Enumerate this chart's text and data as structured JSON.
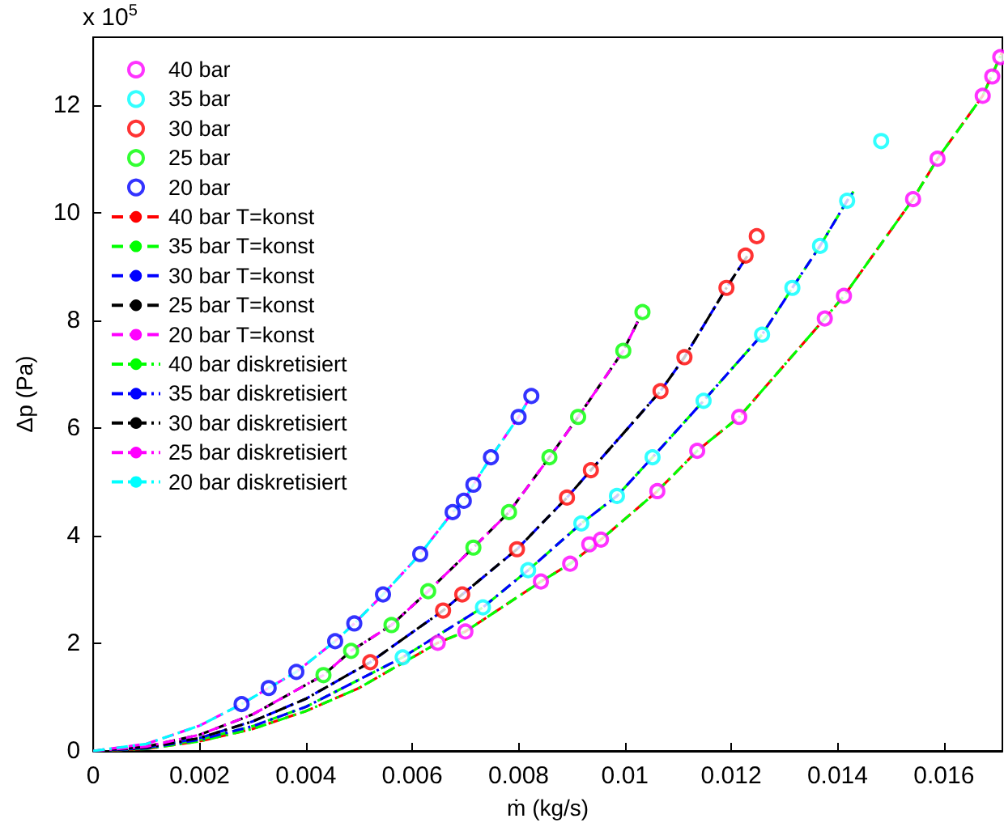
{
  "chart_data": {
    "type": "line",
    "xlabel": "ṁ (kg/s)",
    "ylabel": "Δp (Pa)",
    "annotations": [
      "x 10$^{5}$"
    ],
    "xlim": [
      0,
      0.0171
    ],
    "xticks": [
      0,
      0.002,
      0.004,
      0.006,
      0.008,
      0.01,
      0.012,
      0.014,
      0.016
    ],
    "ylim": [
      0,
      13.27
    ],
    "yticks": [
      0,
      2,
      4,
      6,
      8,
      10,
      12
    ],
    "grid": false,
    "legend": "top left",
    "series": [
      {
        "name": "40 bar",
        "type": "scatter",
        "marker": "circle",
        "color": "#ff00ff",
        "x": [
          0.00648,
          0.007,
          0.00842,
          0.00897,
          0.00933,
          0.00955,
          0.01061,
          0.01136,
          0.01215,
          0.01376,
          0.01412,
          0.01542,
          0.01588,
          0.01673,
          0.01691,
          0.01706
        ],
        "values": [
          2.01,
          2.22,
          3.15,
          3.48,
          3.84,
          3.93,
          4.83,
          5.58,
          6.21,
          8.04,
          8.46,
          10.26,
          11.01,
          12.18,
          12.54,
          12.9
        ]
      },
      {
        "name": "35 bar",
        "type": "scatter",
        "marker": "circle",
        "color": "#00ffff",
        "x": [
          0.00582,
          0.00733,
          0.00818,
          0.00918,
          0.00985,
          0.01052,
          0.01148,
          0.01258,
          0.01315,
          0.01367,
          0.01418,
          0.01482
        ],
        "values": [
          1.74,
          2.67,
          3.36,
          4.23,
          4.74,
          5.46,
          6.51,
          7.74,
          8.61,
          9.39,
          10.23,
          11.34
        ]
      },
      {
        "name": "30 bar",
        "type": "scatter",
        "marker": "circle",
        "color": "#ff0000",
        "x": [
          0.00521,
          0.00658,
          0.00694,
          0.00797,
          0.00891,
          0.00936,
          0.01067,
          0.01112,
          0.01191,
          0.01227,
          0.01248
        ],
        "values": [
          1.65,
          2.61,
          2.91,
          3.75,
          4.71,
          5.22,
          6.69,
          7.32,
          8.61,
          9.21,
          9.57
        ]
      },
      {
        "name": "25 bar",
        "type": "scatter",
        "marker": "circle",
        "color": "#00ff00",
        "x": [
          0.00433,
          0.00485,
          0.00561,
          0.0063,
          0.00715,
          0.00782,
          0.00858,
          0.00912,
          0.00997,
          0.01033
        ],
        "values": [
          1.41,
          1.86,
          2.34,
          2.97,
          3.78,
          4.44,
          5.46,
          6.21,
          7.44,
          8.16
        ]
      },
      {
        "name": "20 bar",
        "type": "scatter",
        "marker": "circle",
        "color": "#0000ff",
        "x": [
          0.00279,
          0.0033,
          0.00382,
          0.00455,
          0.00491,
          0.00545,
          0.00615,
          0.00676,
          0.00697,
          0.00715,
          0.00748,
          0.008,
          0.00824
        ],
        "values": [
          0.87,
          1.17,
          1.47,
          2.04,
          2.37,
          2.91,
          3.66,
          4.44,
          4.65,
          4.95,
          5.46,
          6.21,
          6.6
        ]
      },
      {
        "name": "40 bar T=konst",
        "marker": "none",
        "line_style": "dashed",
        "color": "#ff0000",
        "x": [
          0,
          0.001,
          0.002,
          0.003,
          0.004,
          0.005,
          0.00648,
          0.007,
          0.00842,
          0.00897,
          0.00955,
          0.01061,
          0.01136,
          0.01215,
          0.01376,
          0.01412,
          0.01542,
          0.01588,
          0.01673,
          0.0171
        ],
        "values": [
          0,
          0.04,
          0.18,
          0.41,
          0.74,
          1.17,
          2.01,
          2.22,
          3.15,
          3.48,
          3.93,
          4.83,
          5.58,
          6.21,
          8.04,
          8.46,
          10.26,
          11.01,
          12.18,
          13.0
        ]
      },
      {
        "name": "35 bar T=konst",
        "marker": "none",
        "line_style": "dashed",
        "color": "#00ff00",
        "x": [
          0,
          0.001,
          0.002,
          0.003,
          0.004,
          0.00582,
          0.00733,
          0.00818,
          0.00918,
          0.00985,
          0.01052,
          0.01148,
          0.01258,
          0.01315,
          0.01367,
          0.01418,
          0.0143
        ],
        "values": [
          0,
          0.05,
          0.21,
          0.46,
          0.82,
          1.74,
          2.67,
          3.36,
          4.23,
          4.74,
          5.46,
          6.51,
          7.74,
          8.61,
          9.39,
          10.23,
          10.4
        ]
      },
      {
        "name": "30 bar T=konst",
        "marker": "none",
        "line_style": "dashed",
        "color": "#0000ff",
        "x": [
          0,
          0.001,
          0.002,
          0.003,
          0.004,
          0.00521,
          0.00658,
          0.00694,
          0.00797,
          0.00891,
          0.00936,
          0.01067,
          0.01112,
          0.01191,
          0.0123
        ],
        "values": [
          0,
          0.06,
          0.24,
          0.55,
          0.97,
          1.65,
          2.61,
          2.91,
          3.75,
          4.71,
          5.22,
          6.69,
          7.32,
          8.61,
          9.2
        ]
      },
      {
        "name": "25 bar T=konst",
        "marker": "none",
        "line_style": "dashed",
        "color": "#000000",
        "x": [
          0,
          0.001,
          0.002,
          0.003,
          0.00433,
          0.00485,
          0.00561,
          0.0063,
          0.00715,
          0.00782,
          0.00858,
          0.00912,
          0.00997,
          0.0103
        ],
        "values": [
          0,
          0.08,
          0.3,
          0.68,
          1.41,
          1.86,
          2.34,
          2.97,
          3.78,
          4.44,
          5.46,
          6.21,
          7.44,
          8.1
        ]
      },
      {
        "name": "20 bar T=konst",
        "marker": "none",
        "line_style": "dashed",
        "color": "#ff00ff",
        "x": [
          0,
          0.001,
          0.002,
          0.00279,
          0.0033,
          0.00382,
          0.00455,
          0.00491,
          0.00545,
          0.00615,
          0.00676,
          0.00697,
          0.00715,
          0.00748,
          0.008,
          0.0082
        ],
        "values": [
          0,
          0.13,
          0.47,
          0.87,
          1.17,
          1.47,
          2.04,
          2.37,
          2.91,
          3.66,
          4.44,
          4.65,
          4.95,
          5.46,
          6.21,
          6.55
        ]
      },
      {
        "name": "40 bar diskretisiert",
        "marker": "none",
        "line_style": "dashdot",
        "color": "#00ff00",
        "x": [
          0,
          0.001,
          0.002,
          0.003,
          0.004,
          0.005,
          0.00648,
          0.007,
          0.00842,
          0.00897,
          0.00955,
          0.01061,
          0.01136,
          0.01215,
          0.01376,
          0.01412,
          0.01542,
          0.01588,
          0.01673,
          0.0171
        ],
        "values": [
          0,
          0.04,
          0.18,
          0.41,
          0.74,
          1.17,
          2.01,
          2.22,
          3.15,
          3.48,
          3.93,
          4.83,
          5.58,
          6.21,
          8.04,
          8.46,
          10.26,
          11.01,
          12.18,
          13.0
        ]
      },
      {
        "name": "35 bar diskretisiert",
        "marker": "none",
        "line_style": "dashdot",
        "color": "#0000ff",
        "x": [
          0,
          0.001,
          0.002,
          0.003,
          0.004,
          0.00582,
          0.00733,
          0.00818,
          0.00918,
          0.00985,
          0.01052,
          0.01148,
          0.01258,
          0.01315,
          0.01367,
          0.01418,
          0.0143
        ],
        "values": [
          0,
          0.05,
          0.21,
          0.46,
          0.82,
          1.74,
          2.67,
          3.36,
          4.23,
          4.74,
          5.46,
          6.51,
          7.74,
          8.61,
          9.39,
          10.23,
          10.4
        ]
      },
      {
        "name": "30 bar diskretisiert",
        "marker": "none",
        "line_style": "dashdot",
        "color": "#000000",
        "x": [
          0,
          0.001,
          0.002,
          0.003,
          0.004,
          0.00521,
          0.00658,
          0.00694,
          0.00797,
          0.00891,
          0.00936,
          0.01067,
          0.01112,
          0.01191,
          0.0123
        ],
        "values": [
          0,
          0.06,
          0.24,
          0.55,
          0.97,
          1.65,
          2.61,
          2.91,
          3.75,
          4.71,
          5.22,
          6.69,
          7.32,
          8.61,
          9.2
        ]
      },
      {
        "name": "25 bar diskretisiert",
        "marker": "none",
        "line_style": "dashdot",
        "color": "#ff00ff",
        "x": [
          0,
          0.001,
          0.002,
          0.003,
          0.00433,
          0.00485,
          0.00561,
          0.0063,
          0.00715,
          0.00782,
          0.00858,
          0.00912,
          0.00997,
          0.0103
        ],
        "values": [
          0,
          0.08,
          0.3,
          0.68,
          1.41,
          1.86,
          2.34,
          2.97,
          3.78,
          4.44,
          5.46,
          6.21,
          7.44,
          8.1
        ]
      },
      {
        "name": "20 bar diskretisiert",
        "marker": "none",
        "line_style": "dashdot",
        "color": "#00ffff",
        "x": [
          0,
          0.001,
          0.002,
          0.00279,
          0.0033,
          0.00382,
          0.00455,
          0.00491,
          0.00545,
          0.00615,
          0.00676,
          0.00697,
          0.00715,
          0.00748,
          0.008,
          0.0082
        ],
        "values": [
          0,
          0.13,
          0.47,
          0.87,
          1.17,
          1.47,
          2.04,
          2.37,
          2.91,
          3.66,
          4.44,
          4.65,
          4.95,
          5.46,
          6.21,
          6.55
        ]
      }
    ]
  }
}
